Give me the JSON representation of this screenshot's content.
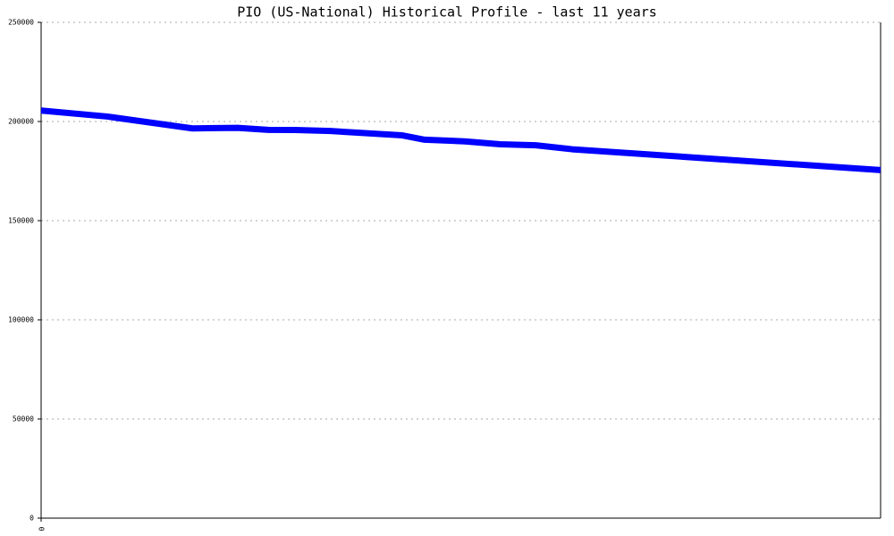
{
  "chart_data": {
    "type": "line",
    "title": "PIO (US-National) Historical Profile - last 11 years",
    "x": [
      0,
      10.4,
      23.8,
      27.3,
      30.9,
      35.7,
      39.9,
      45.5,
      56.8,
      60.3,
      66.6,
      72.2,
      77.8,
      83.5,
      132
    ],
    "series": [
      {
        "color": "#0000ff",
        "values": [
          205500,
          202500,
          196500,
          196700,
          196800,
          195800,
          195700,
          195200,
          193000,
          190800,
          190000,
          188500,
          188000,
          186000,
          175500
        ]
      }
    ],
    "xlim": [
      0,
      132
    ],
    "xticks": [
      0
    ],
    "ylim": [
      0,
      250000
    ],
    "yticks": [
      0,
      50000,
      100000,
      150000,
      200000,
      250000
    ],
    "grid": true
  }
}
